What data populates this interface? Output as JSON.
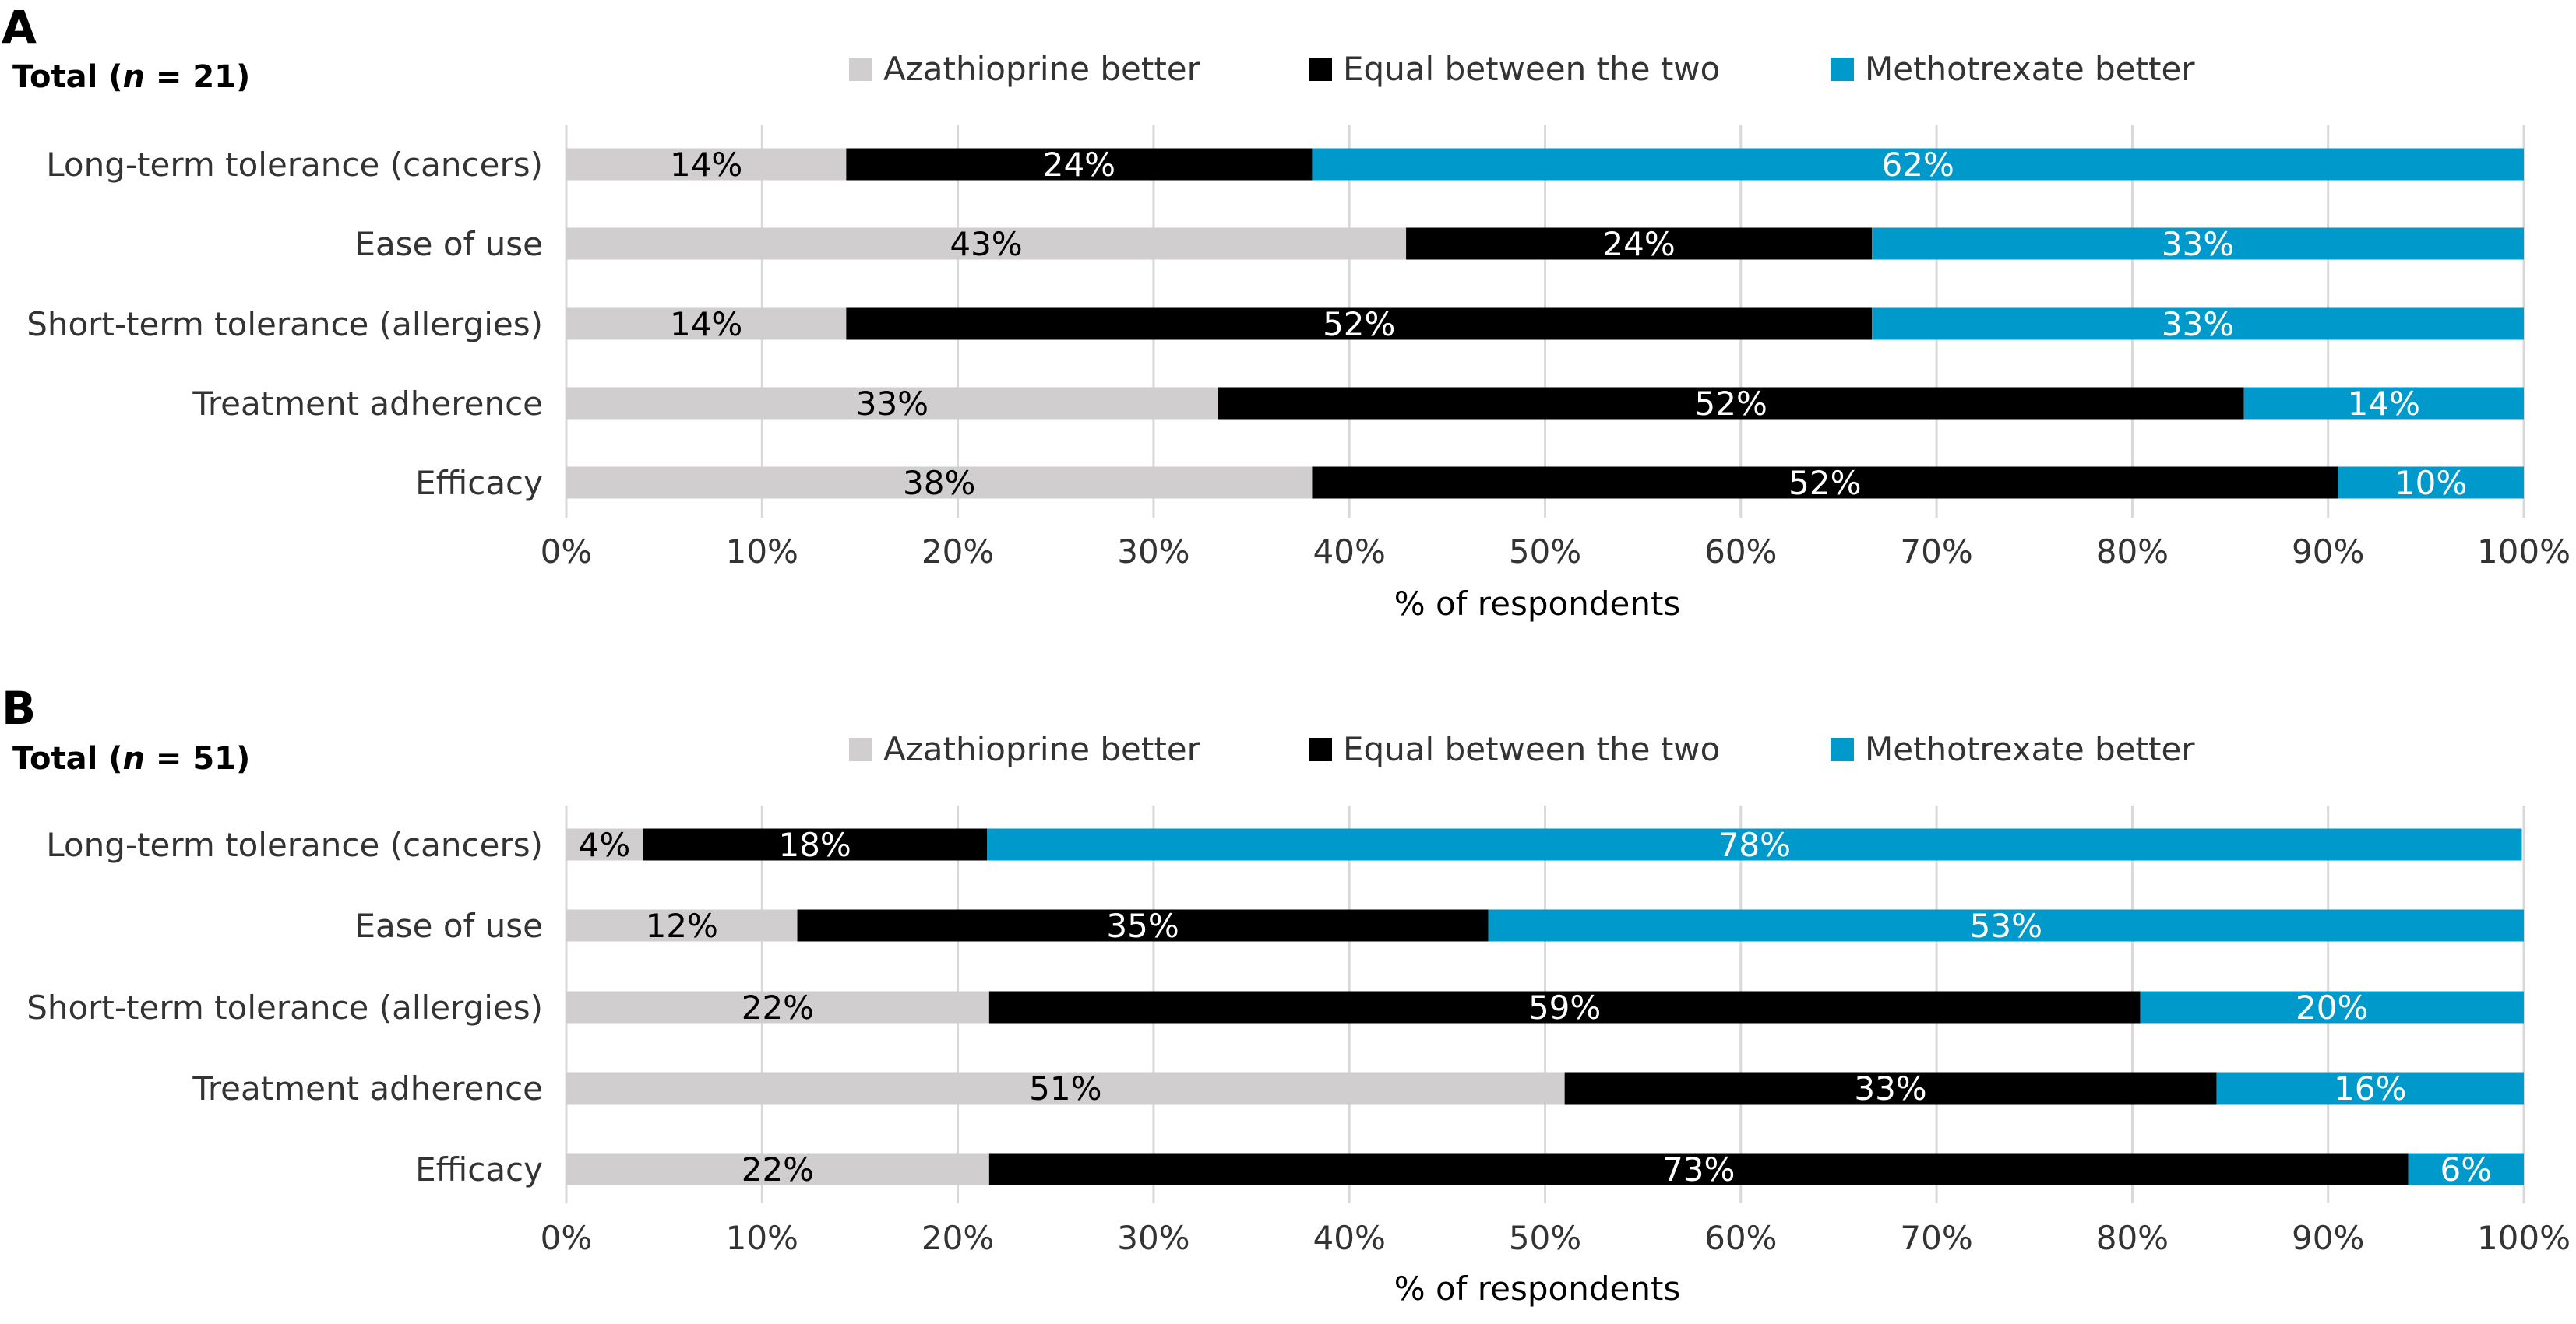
{
  "panels": [
    {
      "letter": "A",
      "n_prefix": "Total (",
      "n_symbol": "n",
      "n_suffix": " = 21)",
      "legend_position": "top",
      "chart_data": {
        "type": "bar",
        "orientation": "horizontal",
        "stacked": true,
        "title": "",
        "xlabel": "% of respondents",
        "ylabel": "",
        "xlim": [
          0,
          100
        ],
        "x_ticks": [
          "0%",
          "10%",
          "20%",
          "30%",
          "40%",
          "50%",
          "60%",
          "70%",
          "80%",
          "90%",
          "100%"
        ],
        "grid": true,
        "categories": [
          "Long-term tolerance (cancers)",
          "Ease of use",
          "Short-term tolerance (allergies)",
          "Treatment adherence",
          "Efficacy"
        ],
        "series": [
          {
            "name": "Azathioprine better",
            "color": "#d0cece",
            "label_color": "#000000",
            "values": [
              14.3,
              42.9,
              14.3,
              33.3,
              38.1
            ],
            "labels": [
              "14%",
              "43%",
              "14%",
              "33%",
              "38%"
            ]
          },
          {
            "name": "Equal between the two",
            "color": "#000000",
            "label_color": "#ffffff",
            "values": [
              23.8,
              23.8,
              52.4,
              52.4,
              52.4
            ],
            "labels": [
              "24%",
              "24%",
              "52%",
              "52%",
              "52%"
            ]
          },
          {
            "name": "Methotrexate better",
            "color": "#0099cc",
            "label_color": "#ffffff",
            "values": [
              61.9,
              33.3,
              33.3,
              14.3,
              9.5
            ],
            "labels": [
              "62%",
              "33%",
              "33%",
              "14%",
              "10%"
            ]
          }
        ]
      }
    },
    {
      "letter": "B",
      "n_prefix": "Total (",
      "n_symbol": "n",
      "n_suffix": " = 51)",
      "legend_position": "top",
      "chart_data": {
        "type": "bar",
        "orientation": "horizontal",
        "stacked": true,
        "title": "",
        "xlabel": "% of respondents",
        "ylabel": "",
        "xlim": [
          0,
          100
        ],
        "x_ticks": [
          "0%",
          "10%",
          "20%",
          "30%",
          "40%",
          "50%",
          "60%",
          "70%",
          "80%",
          "90%",
          "100%"
        ],
        "grid": true,
        "categories": [
          "Long-term tolerance (cancers)",
          "Ease of use",
          "Short-term tolerance (allergies)",
          "Treatment adherence",
          "Efficacy"
        ],
        "series": [
          {
            "name": "Azathioprine better",
            "color": "#d0cece",
            "label_color": "#000000",
            "values": [
              3.9,
              11.8,
              21.6,
              51.0,
              21.6
            ],
            "labels": [
              "4%",
              "12%",
              "22%",
              "51%",
              "22%"
            ]
          },
          {
            "name": "Equal between the two",
            "color": "#000000",
            "label_color": "#ffffff",
            "values": [
              17.6,
              35.3,
              58.8,
              33.3,
              72.5
            ],
            "labels": [
              "18%",
              "35%",
              "59%",
              "33%",
              "73%"
            ]
          },
          {
            "name": "Methotrexate better",
            "color": "#0099cc",
            "label_color": "#ffffff",
            "values": [
              78.4,
              52.9,
              19.6,
              15.7,
              5.9
            ],
            "labels": [
              "78%",
              "53%",
              "20%",
              "16%",
              "6%"
            ]
          }
        ]
      }
    }
  ]
}
